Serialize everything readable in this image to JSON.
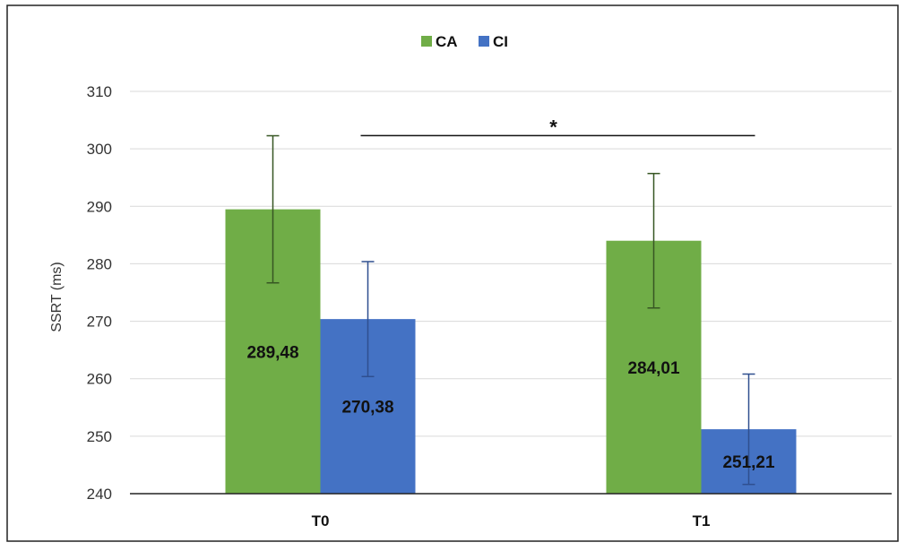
{
  "chart_data": {
    "type": "bar",
    "title": "",
    "xlabel": "",
    "ylabel": "SSRT (ms)",
    "ylim": [
      240,
      310
    ],
    "yticks": [
      240,
      250,
      260,
      270,
      280,
      290,
      300,
      310
    ],
    "categories": [
      "T0",
      "T1"
    ],
    "grid": true,
    "legend_position": "top-center",
    "series": [
      {
        "name": "CA",
        "color": "#70ad47",
        "errorbar_color": "#375623",
        "values": [
          289.48,
          284.01
        ],
        "labels": [
          "289,48",
          "284,01"
        ],
        "error": [
          12.8,
          11.7
        ]
      },
      {
        "name": "CI",
        "color": "#4472c4",
        "errorbar_color": "#2f4f8f",
        "values": [
          270.38,
          251.21
        ],
        "labels": [
          "270,38",
          "251,21"
        ],
        "error": [
          10.0,
          9.6
        ]
      }
    ],
    "annotations": [
      {
        "type": "significance",
        "text": "*",
        "from": "T0",
        "to": "T1"
      }
    ]
  }
}
